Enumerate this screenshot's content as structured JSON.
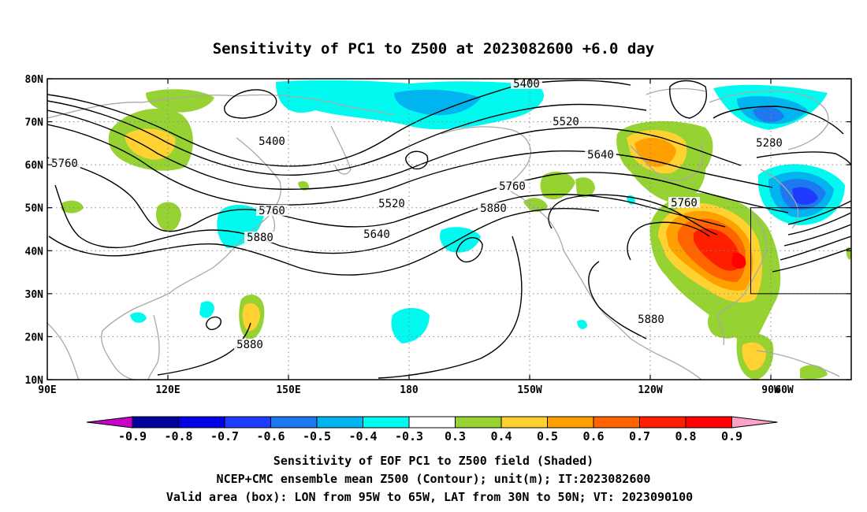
{
  "title": "Sensitivity of PC1 to Z500 at 2023082600 +6.0 day",
  "map": {
    "lat_range": [
      10,
      80
    ],
    "lon_range": [
      90,
      290
    ],
    "lat_ticks": [
      {
        "value": 80,
        "label": "80N"
      },
      {
        "value": 70,
        "label": "70N"
      },
      {
        "value": 60,
        "label": "60N"
      },
      {
        "value": 50,
        "label": "50N"
      },
      {
        "value": 40,
        "label": "40N"
      },
      {
        "value": 30,
        "label": "30N"
      },
      {
        "value": 20,
        "label": "20N"
      },
      {
        "value": 10,
        "label": "10N"
      }
    ],
    "lon_ticks": [
      {
        "value": 90,
        "label": "90E"
      },
      {
        "value": 120,
        "label": "120E"
      },
      {
        "value": 150,
        "label": "150E"
      },
      {
        "value": 180,
        "label": "180"
      },
      {
        "value": 210,
        "label": "150W"
      },
      {
        "value": 240,
        "label": "120W"
      },
      {
        "value": 270,
        "label": "90W"
      },
      {
        "value": 300,
        "label": "60W"
      }
    ],
    "grid": "dotted",
    "valid_box": {
      "lon_min": 265,
      "lon_max": 295,
      "lat_min": 30,
      "lat_max": 50
    },
    "contour_labels": [
      "5400",
      "5520",
      "5280",
      "5400",
      "5640",
      "5760",
      "5760",
      "5520",
      "5760",
      "5880",
      "5640",
      "5880",
      "5760",
      "5880",
      "5880"
    ]
  },
  "colorbar": {
    "labels": [
      "-0.9",
      "-0.8",
      "-0.7",
      "-0.6",
      "-0.5",
      "-0.4",
      "-0.3",
      "0.3",
      "0.4",
      "0.5",
      "0.6",
      "0.7",
      "0.8",
      "0.9"
    ],
    "colors": [
      "#00009c",
      "#0000e6",
      "#1e3cff",
      "#1e78f0",
      "#00b4f0",
      "#00faf0",
      "#ffffff",
      "#96d232",
      "#ffd232",
      "#ffa000",
      "#ff6400",
      "#ff1e00",
      "#ff0000"
    ],
    "low_arrow_color": "#c800c8",
    "high_arrow_color": "#ffa0c8"
  },
  "caption": {
    "line1": "Sensitivity of EOF PC1 to Z500 field (Shaded)",
    "line2": "NCEP+CMC ensemble mean Z500 (Contour); unit(m); IT:2023082600",
    "line3": "Valid area (box): LON from 95W to 65W, LAT from 30N to 50N; VT: 2023090100"
  }
}
